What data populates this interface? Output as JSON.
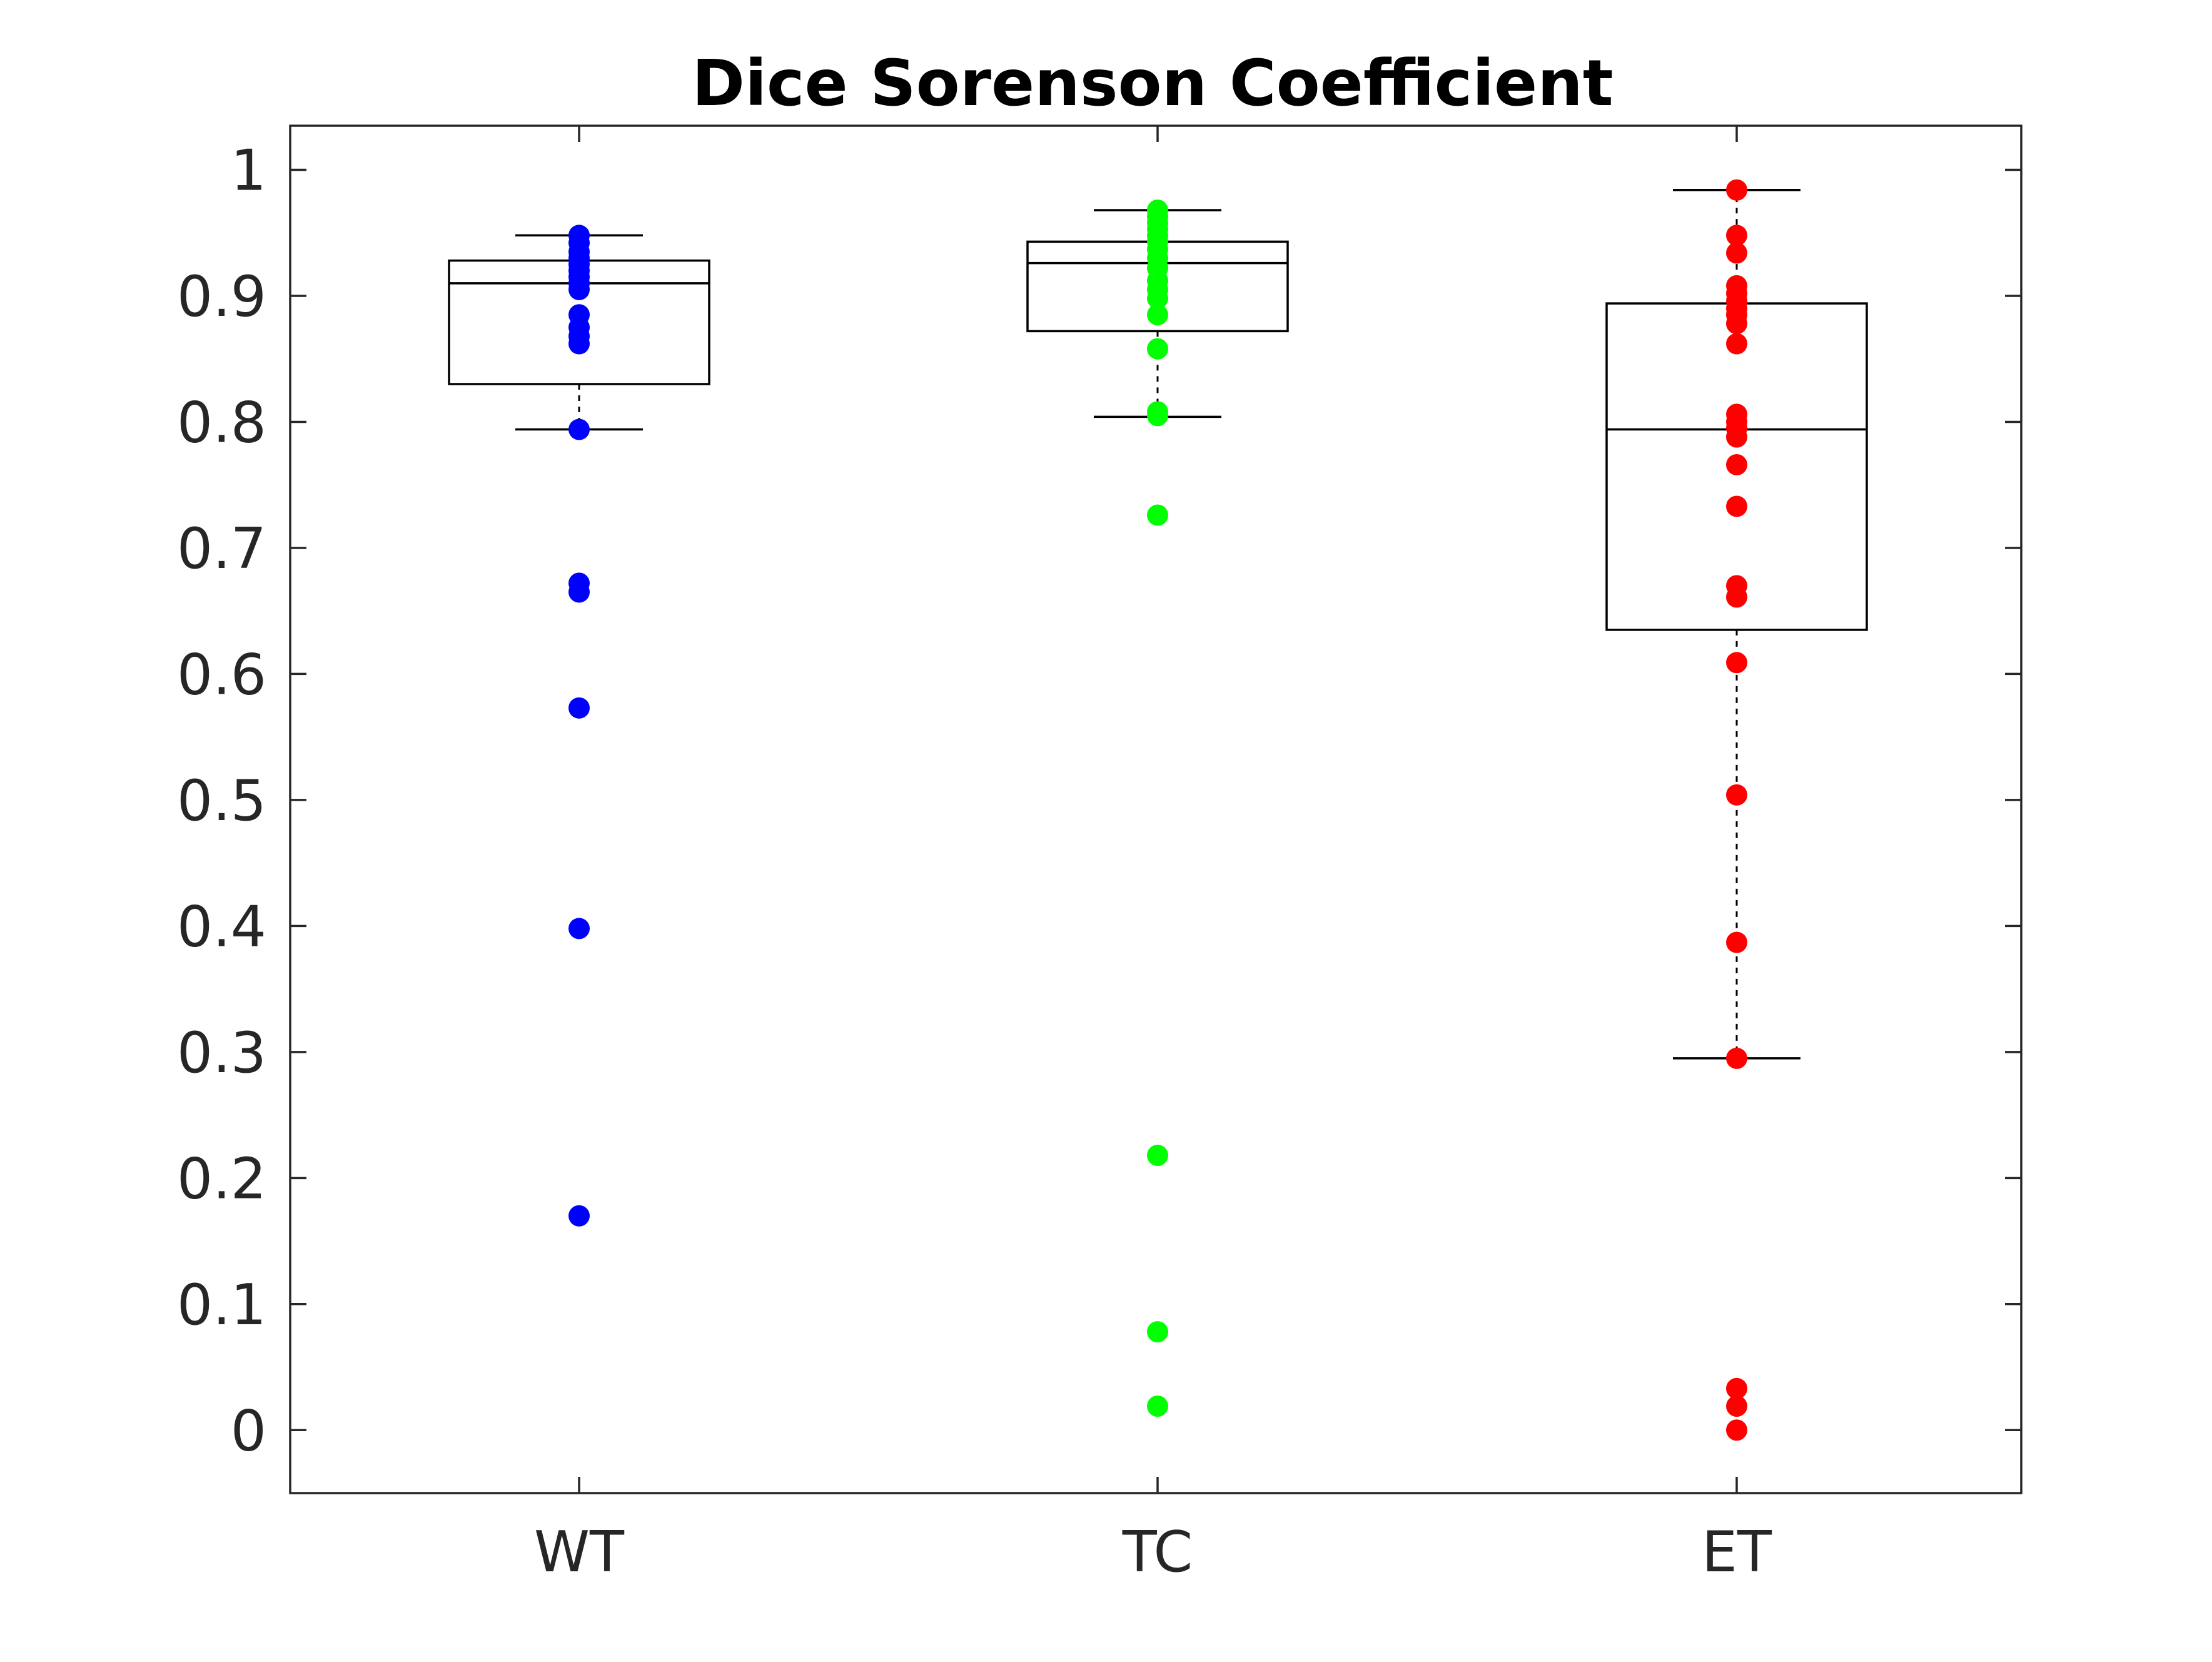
{
  "chart_data": {
    "type": "box",
    "title": "Dice Sorenson Coefficient",
    "xlabel": "",
    "ylabel": "",
    "categories": [
      "WT",
      "TC",
      "ET"
    ],
    "ylim": [
      -0.05,
      1.035
    ],
    "yticks": [
      0,
      0.1,
      0.2,
      0.3,
      0.4,
      0.5,
      0.6,
      0.7,
      0.8,
      0.9,
      1
    ],
    "ytick_labels": [
      "0",
      "0.1",
      "0.2",
      "0.3",
      "0.4",
      "0.5",
      "0.6",
      "0.7",
      "0.8",
      "0.9",
      "1"
    ],
    "grid": false,
    "legend": "none",
    "series": [
      {
        "category": "WT",
        "color": "#0000ff",
        "box": {
          "q1": 0.83,
          "median": 0.91,
          "q3": 0.928,
          "whisker_low": 0.794,
          "whisker_high": 0.948
        },
        "points": [
          0.948,
          0.942,
          0.935,
          0.93,
          0.925,
          0.92,
          0.915,
          0.91,
          0.905,
          0.885,
          0.875,
          0.868,
          0.862,
          0.794,
          0.672,
          0.665,
          0.573,
          0.398,
          0.17
        ]
      },
      {
        "category": "TC",
        "color": "#00ff00",
        "box": {
          "q1": 0.872,
          "median": 0.926,
          "q3": 0.943,
          "whisker_low": 0.804,
          "whisker_high": 0.968
        },
        "points": [
          0.968,
          0.963,
          0.958,
          0.953,
          0.948,
          0.943,
          0.937,
          0.93,
          0.922,
          0.912,
          0.905,
          0.898,
          0.885,
          0.858,
          0.808,
          0.805,
          0.726,
          0.218,
          0.078,
          0.019
        ]
      },
      {
        "category": "ET",
        "color": "#ff0000",
        "box": {
          "q1": 0.635,
          "median": 0.794,
          "q3": 0.894,
          "whisker_low": 0.295,
          "whisker_high": 0.984
        },
        "points": [
          0.984,
          0.948,
          0.934,
          0.908,
          0.902,
          0.896,
          0.89,
          0.885,
          0.878,
          0.862,
          0.806,
          0.8,
          0.795,
          0.788,
          0.766,
          0.733,
          0.67,
          0.661,
          0.609,
          0.504,
          0.387,
          0.295,
          0.033,
          0.019,
          0.0
        ]
      }
    ]
  }
}
